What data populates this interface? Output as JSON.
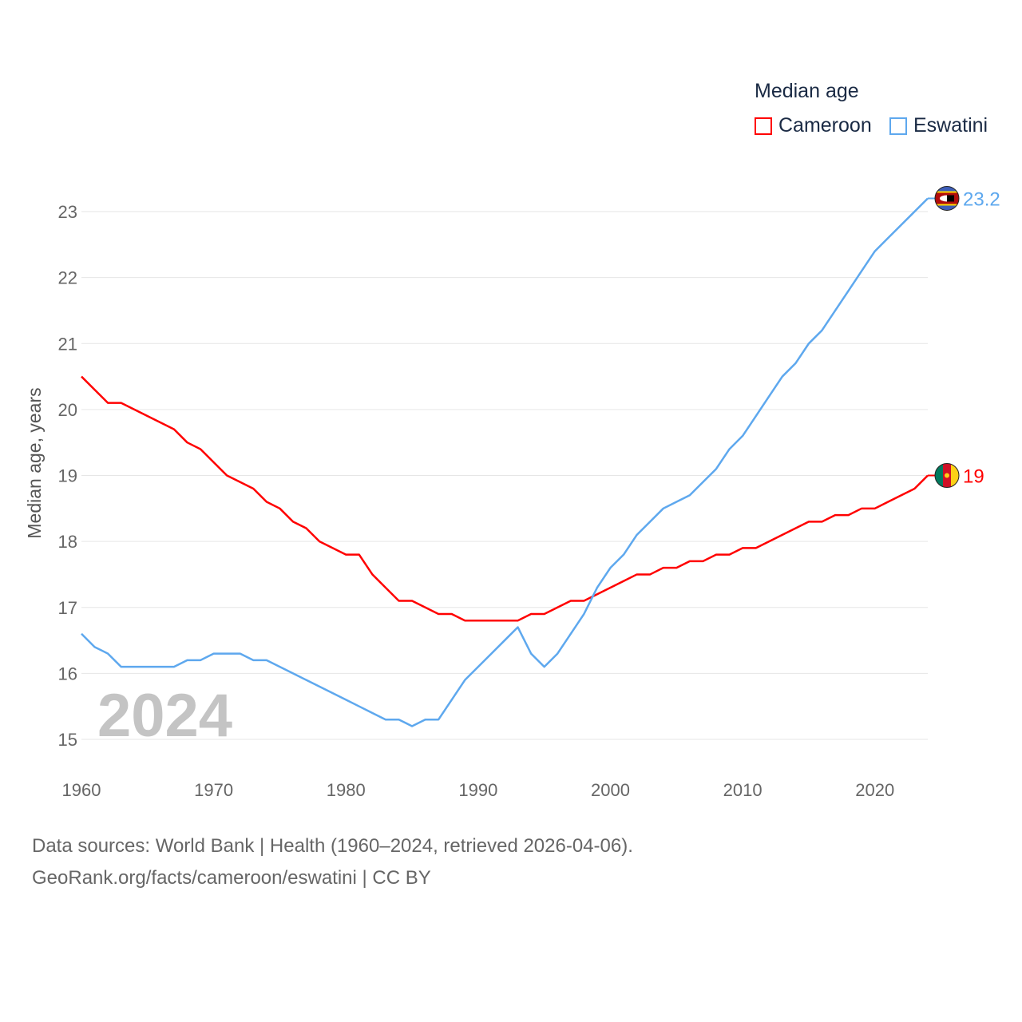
{
  "chart_data": {
    "type": "line",
    "title": "Median age",
    "xlabel": "",
    "ylabel": "Median age, years",
    "xlim": [
      1960,
      2024
    ],
    "ylim": [
      14.6,
      23.6
    ],
    "x_ticks": [
      1960,
      1970,
      1980,
      1990,
      2000,
      2010,
      2020
    ],
    "y_ticks": [
      15,
      16,
      17,
      18,
      19,
      20,
      21,
      22,
      23
    ],
    "grid": true,
    "legend_placement": "top-right",
    "year_watermark": "2024",
    "x": [
      1960,
      1961,
      1962,
      1963,
      1964,
      1965,
      1966,
      1967,
      1968,
      1969,
      1970,
      1971,
      1972,
      1973,
      1974,
      1975,
      1976,
      1977,
      1978,
      1979,
      1980,
      1981,
      1982,
      1983,
      1984,
      1985,
      1986,
      1987,
      1988,
      1989,
      1990,
      1991,
      1992,
      1993,
      1994,
      1995,
      1996,
      1997,
      1998,
      1999,
      2000,
      2001,
      2002,
      2003,
      2004,
      2005,
      2006,
      2007,
      2008,
      2009,
      2010,
      2011,
      2012,
      2013,
      2014,
      2015,
      2016,
      2017,
      2018,
      2019,
      2020,
      2021,
      2022,
      2023,
      2024
    ],
    "series": [
      {
        "name": "Cameroon",
        "color": "#ff0000",
        "end_label": "19",
        "values": [
          20.5,
          20.3,
          20.1,
          20.1,
          20.0,
          19.9,
          19.8,
          19.7,
          19.5,
          19.4,
          19.2,
          19.0,
          18.9,
          18.8,
          18.6,
          18.5,
          18.3,
          18.2,
          18.0,
          17.9,
          17.8,
          17.8,
          17.5,
          17.3,
          17.1,
          17.1,
          17.0,
          16.9,
          16.9,
          16.8,
          16.8,
          16.8,
          16.8,
          16.8,
          16.9,
          16.9,
          17.0,
          17.1,
          17.1,
          17.2,
          17.3,
          17.4,
          17.5,
          17.5,
          17.6,
          17.6,
          17.7,
          17.7,
          17.8,
          17.8,
          17.9,
          17.9,
          18.0,
          18.1,
          18.2,
          18.3,
          18.3,
          18.4,
          18.4,
          18.5,
          18.5,
          18.6,
          18.7,
          18.8,
          19.0
        ]
      },
      {
        "name": "Eswatini",
        "color": "#5ea8ee",
        "end_label": "23.2",
        "values": [
          16.6,
          16.4,
          16.3,
          16.1,
          16.1,
          16.1,
          16.1,
          16.1,
          16.2,
          16.2,
          16.3,
          16.3,
          16.3,
          16.2,
          16.2,
          16.1,
          16.0,
          15.9,
          15.8,
          15.7,
          15.6,
          15.5,
          15.4,
          15.3,
          15.3,
          15.2,
          15.3,
          15.3,
          15.6,
          15.9,
          16.1,
          16.3,
          16.5,
          16.7,
          16.3,
          16.1,
          16.3,
          16.6,
          16.9,
          17.3,
          17.6,
          17.8,
          18.1,
          18.3,
          18.5,
          18.6,
          18.7,
          18.9,
          19.1,
          19.4,
          19.6,
          19.9,
          20.2,
          20.5,
          20.7,
          21.0,
          21.2,
          21.5,
          21.8,
          22.1,
          22.4,
          22.6,
          22.8,
          23.0,
          23.2
        ]
      }
    ]
  },
  "footer": {
    "line1": "Data sources: World Bank | Health (1960–2024, retrieved 2026-04-06).",
    "line2": "GeoRank.org/facts/cameroon/eswatini | CC BY"
  }
}
